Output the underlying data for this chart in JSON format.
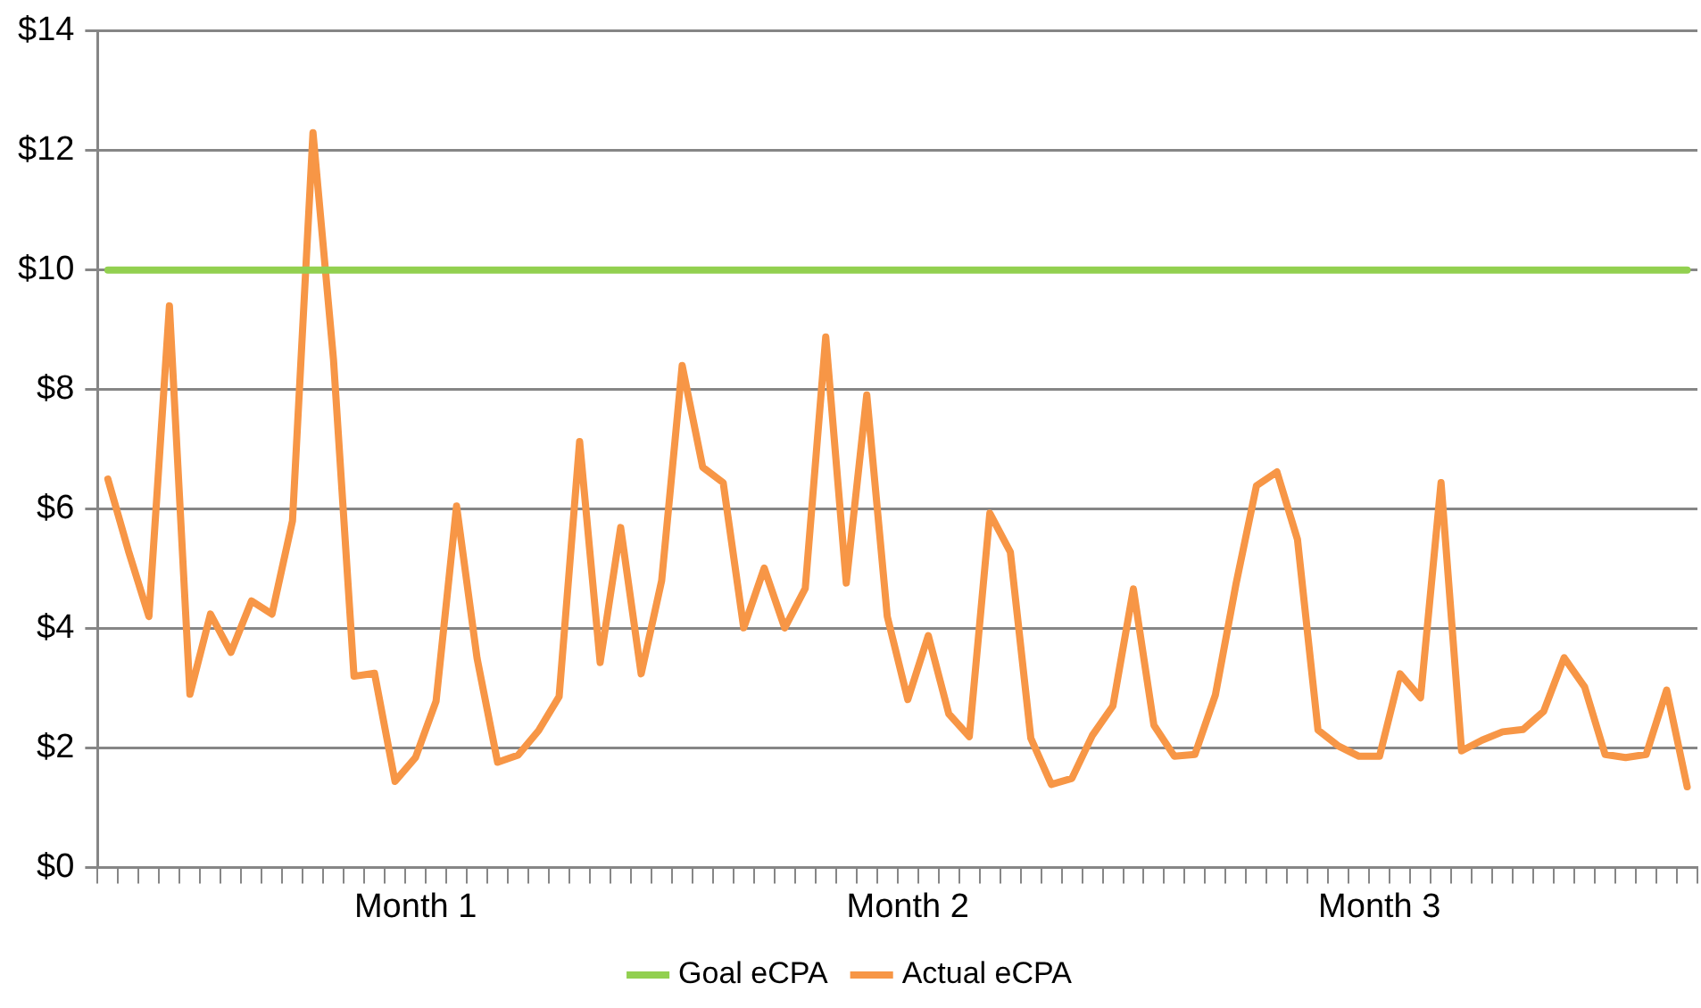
{
  "chart_data": {
    "type": "line",
    "categories": [
      null,
      null,
      null,
      null,
      null,
      null,
      null,
      null,
      null,
      null,
      null,
      null,
      null,
      null,
      null,
      "Month 1",
      null,
      null,
      null,
      null,
      null,
      null,
      null,
      null,
      null,
      null,
      null,
      null,
      null,
      null,
      null,
      null,
      null,
      null,
      null,
      null,
      null,
      null,
      null,
      "Month 2",
      null,
      null,
      null,
      null,
      null,
      null,
      null,
      null,
      null,
      null,
      null,
      null,
      null,
      null,
      null,
      null,
      null,
      null,
      null,
      null,
      null,
      null,
      "Month 3",
      null,
      null,
      null,
      null,
      null,
      null,
      null,
      null,
      null,
      null,
      null,
      null,
      null,
      null,
      null
    ],
    "series": [
      {
        "name": "Goal eCPA",
        "color": "#92d050",
        "values": [
          10,
          10,
          10,
          10,
          10,
          10,
          10,
          10,
          10,
          10,
          10,
          10,
          10,
          10,
          10,
          10,
          10,
          10,
          10,
          10,
          10,
          10,
          10,
          10,
          10,
          10,
          10,
          10,
          10,
          10,
          10,
          10,
          10,
          10,
          10,
          10,
          10,
          10,
          10,
          10,
          10,
          10,
          10,
          10,
          10,
          10,
          10,
          10,
          10,
          10,
          10,
          10,
          10,
          10,
          10,
          10,
          10,
          10,
          10,
          10,
          10,
          10,
          10,
          10,
          10,
          10,
          10,
          10,
          10,
          10,
          10,
          10,
          10,
          10,
          10,
          10,
          10,
          10
        ]
      },
      {
        "name": "Actual eCPA",
        "color": "#f79646",
        "values": [
          6.5,
          5.3,
          4.2,
          9.4,
          2.9,
          4.24,
          3.6,
          4.46,
          4.24,
          5.8,
          12.3,
          8.5,
          3.2,
          3.25,
          1.44,
          1.84,
          2.78,
          6.05,
          3.5,
          1.76,
          1.88,
          2.29,
          2.86,
          7.13,
          3.43,
          5.69,
          3.24,
          4.8,
          8.4,
          6.7,
          6.44,
          4.01,
          5.01,
          4.01,
          4.67,
          8.88,
          4.76,
          7.91,
          4.2,
          2.81,
          3.88,
          2.57,
          2.19,
          5.93,
          5.28,
          2.16,
          1.39,
          1.49,
          2.21,
          2.7,
          4.66,
          2.38,
          1.86,
          1.89,
          2.89,
          4.74,
          6.39,
          6.62,
          5.49,
          2.3,
          2.03,
          1.86,
          1.86,
          3.24,
          2.84,
          6.44,
          1.95,
          2.13,
          2.27,
          2.31,
          2.61,
          3.51,
          3.02,
          1.89,
          1.84,
          1.89,
          2.97,
          1.35
        ]
      }
    ],
    "ylim": [
      0,
      14
    ],
    "yticks": [
      {
        "value": 0,
        "label": "$0"
      },
      {
        "value": 2,
        "label": "$2"
      },
      {
        "value": 4,
        "label": "$4"
      },
      {
        "value": 6,
        "label": "$6"
      },
      {
        "value": 8,
        "label": "$8"
      },
      {
        "value": 10,
        "label": "$10"
      },
      {
        "value": 12,
        "label": "$12"
      },
      {
        "value": 14,
        "label": "$14"
      }
    ],
    "grid": "y",
    "legend": "bottom",
    "marker": "none",
    "line_style": "solid"
  }
}
